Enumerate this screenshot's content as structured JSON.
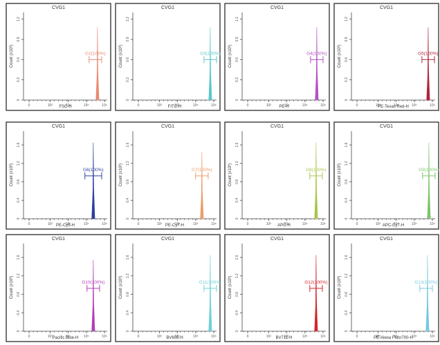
{
  "chart_data": [
    {
      "type": "histogram",
      "title": "CVG1",
      "xlabel": "FSC-H",
      "ylabel": "Count (x10³)",
      "ylim": [
        0,
        1.3
      ],
      "yticks": [
        "0",
        "0.3",
        "0.6",
        "0.9",
        "1.2"
      ],
      "xticks": [
        "0",
        "10³",
        "10⁴",
        "10⁵",
        "10⁶"
      ],
      "peak_x": 5.3,
      "peak_y": 1.08,
      "gate": {
        "label": "G2(100%)",
        "center": 5.15,
        "halfwidth": 0.45,
        "y": 0.6
      },
      "color": "#e98a73"
    },
    {
      "type": "histogram",
      "title": "CVG1",
      "xlabel": "FITC-H",
      "ylabel": "Count (x10³)",
      "ylim": [
        0,
        1.3
      ],
      "yticks": [
        "0",
        "0.3",
        "0.6",
        "0.9",
        "1.2"
      ],
      "xticks": [
        "0",
        "10³",
        "10⁴",
        "10⁵",
        "10⁶"
      ],
      "peak_x": 5.55,
      "peak_y": 1.08,
      "gate": {
        "label": "G3(100%)",
        "center": 5.55,
        "halfwidth": 0.45,
        "y": 0.6
      },
      "color": "#5cc6cf"
    },
    {
      "type": "histogram",
      "title": "CVG1",
      "xlabel": "PE-H",
      "ylabel": "Count (x10³)",
      "ylim": [
        0,
        1.3
      ],
      "yticks": [
        "0",
        "0.3",
        "0.6",
        "0.9",
        "1.2"
      ],
      "xticks": [
        "0",
        "10³",
        "10⁴",
        "10⁵",
        "10⁶"
      ],
      "peak_x": 5.35,
      "peak_y": 1.08,
      "gate": {
        "label": "G4(100%)",
        "center": 5.35,
        "halfwidth": 0.45,
        "y": 0.6
      },
      "color": "#b34fc4"
    },
    {
      "type": "histogram",
      "title": "CVG1",
      "xlabel": "PE-Texas Red-H",
      "ylabel": "Count (x10³)",
      "ylim": [
        0,
        1.3
      ],
      "yticks": [
        "0",
        "0.3",
        "0.6",
        "0.9",
        "1.2"
      ],
      "xticks": [
        "0",
        "10³",
        "10⁴",
        "10⁵",
        "10⁶"
      ],
      "peak_x": 5.5,
      "peak_y": 1.08,
      "gate": {
        "label": "G5(100%)",
        "center": 5.5,
        "halfwidth": 0.45,
        "y": 0.6
      },
      "color": "#b0243a"
    },
    {
      "type": "histogram",
      "title": "CVG1",
      "xlabel": "PE-Cy5-H",
      "ylabel": "Count (x10³)",
      "ylim": [
        0,
        1.9
      ],
      "yticks": [
        "0",
        "0.4",
        "0.8",
        "1.2",
        "1.6"
      ],
      "xticks": [
        "0",
        "10³",
        "10⁴",
        "10⁵",
        "10⁶"
      ],
      "peak_x": 5.0,
      "peak_y": 1.65,
      "gate": {
        "label": "G6(100%)",
        "center": 5.0,
        "halfwidth": 0.6,
        "y": 0.93
      },
      "color": "#2b3fa0"
    },
    {
      "type": "histogram",
      "title": "CVG1",
      "xlabel": "PE-Cy7-H",
      "ylabel": "Count (x10³)",
      "ylim": [
        0,
        1.9
      ],
      "yticks": [
        "0",
        "0.4",
        "0.8",
        "1.2",
        "1.6"
      ],
      "xticks": [
        "0",
        "10³",
        "10⁴",
        "10⁵",
        "10⁶"
      ],
      "peak_x": 4.95,
      "peak_y": 1.45,
      "gate": {
        "label": "G7(100%)",
        "center": 4.95,
        "halfwidth": 0.45,
        "y": 0.93
      },
      "color": "#ee9a66"
    },
    {
      "type": "histogram",
      "title": "CVG1",
      "xlabel": "APC-H",
      "ylabel": "Count (x10³)",
      "ylim": [
        0,
        1.9
      ],
      "yticks": [
        "0",
        "0.4",
        "0.8",
        "1.2",
        "1.6"
      ],
      "xticks": [
        "0",
        "10³",
        "10⁴",
        "10⁵",
        "10⁶"
      ],
      "peak_x": 5.3,
      "peak_y": 1.65,
      "gate": {
        "label": "G8(100%)",
        "center": 5.3,
        "halfwidth": 0.45,
        "y": 0.93
      },
      "color": "#a8c64a"
    },
    {
      "type": "histogram",
      "title": "CVG1",
      "xlabel": "APC-Cy7-H",
      "ylabel": "Count (x10³)",
      "ylim": [
        0,
        1.9
      ],
      "yticks": [
        "0",
        "0.4",
        "0.8",
        "1.2",
        "1.6"
      ],
      "xticks": [
        "0",
        "10³",
        "10⁴",
        "10⁵",
        "10⁶"
      ],
      "peak_x": 5.55,
      "peak_y": 1.65,
      "gate": {
        "label": "G9(100%)",
        "center": 5.55,
        "halfwidth": 0.45,
        "y": 0.93
      },
      "color": "#7cc46a"
    },
    {
      "type": "histogram",
      "title": "CVG1",
      "xlabel": "Pacific Blue-H",
      "ylabel": "Count (x10³)",
      "ylim": [
        0,
        1.9
      ],
      "yticks": [
        "0",
        "0.4",
        "0.8",
        "1.2",
        "1.6"
      ],
      "xticks": [
        "0",
        "10³",
        "10⁴",
        "10⁵",
        "10⁶"
      ],
      "peak_x": 5.0,
      "peak_y": 1.55,
      "gate": {
        "label": "G10(100%)",
        "center": 5.0,
        "halfwidth": 0.45,
        "y": 0.93
      },
      "color": "#b13fb7"
    },
    {
      "type": "histogram",
      "title": "CVG1",
      "xlabel": "BV605-H",
      "ylabel": "Count (x10³)",
      "ylim": [
        0,
        1.9
      ],
      "yticks": [
        "0",
        "0.4",
        "0.8",
        "1.2",
        "1.6"
      ],
      "xticks": [
        "0",
        "10³",
        "10⁴",
        "10⁵",
        "10⁶"
      ],
      "peak_x": 5.55,
      "peak_y": 1.65,
      "gate": {
        "label": "G11(100%)",
        "center": 5.55,
        "halfwidth": 0.45,
        "y": 0.93
      },
      "color": "#6fd0d6"
    },
    {
      "type": "histogram",
      "title": "CVG1",
      "xlabel": "BV711-H",
      "ylabel": "Count (x10³)",
      "ylim": [
        0,
        1.9
      ],
      "yticks": [
        "0",
        "0.4",
        "0.8",
        "1.2",
        "1.6"
      ],
      "xticks": [
        "0",
        "10³",
        "10⁴",
        "10⁵",
        "10⁶"
      ],
      "peak_x": 5.3,
      "peak_y": 1.65,
      "gate": {
        "label": "G12(100%)",
        "center": 5.3,
        "halfwidth": 0.45,
        "y": 0.93
      },
      "color": "#d1262a"
    },
    {
      "type": "histogram",
      "title": "CVG1",
      "xlabel": "PE-Alexa Fluor700-H",
      "ylabel": "Count (x10³)",
      "ylim": [
        0,
        1.9
      ],
      "yticks": [
        "0",
        "0.4",
        "0.8",
        "1.2",
        "1.6"
      ],
      "xticks": [
        "0",
        "10³",
        "10⁴",
        "10⁵",
        "10⁶"
      ],
      "peak_x": 5.45,
      "peak_y": 1.65,
      "gate": {
        "label": "G13(100%)",
        "center": 5.35,
        "halfwidth": 0.45,
        "y": 0.93
      },
      "color": "#78c8e0"
    }
  ]
}
